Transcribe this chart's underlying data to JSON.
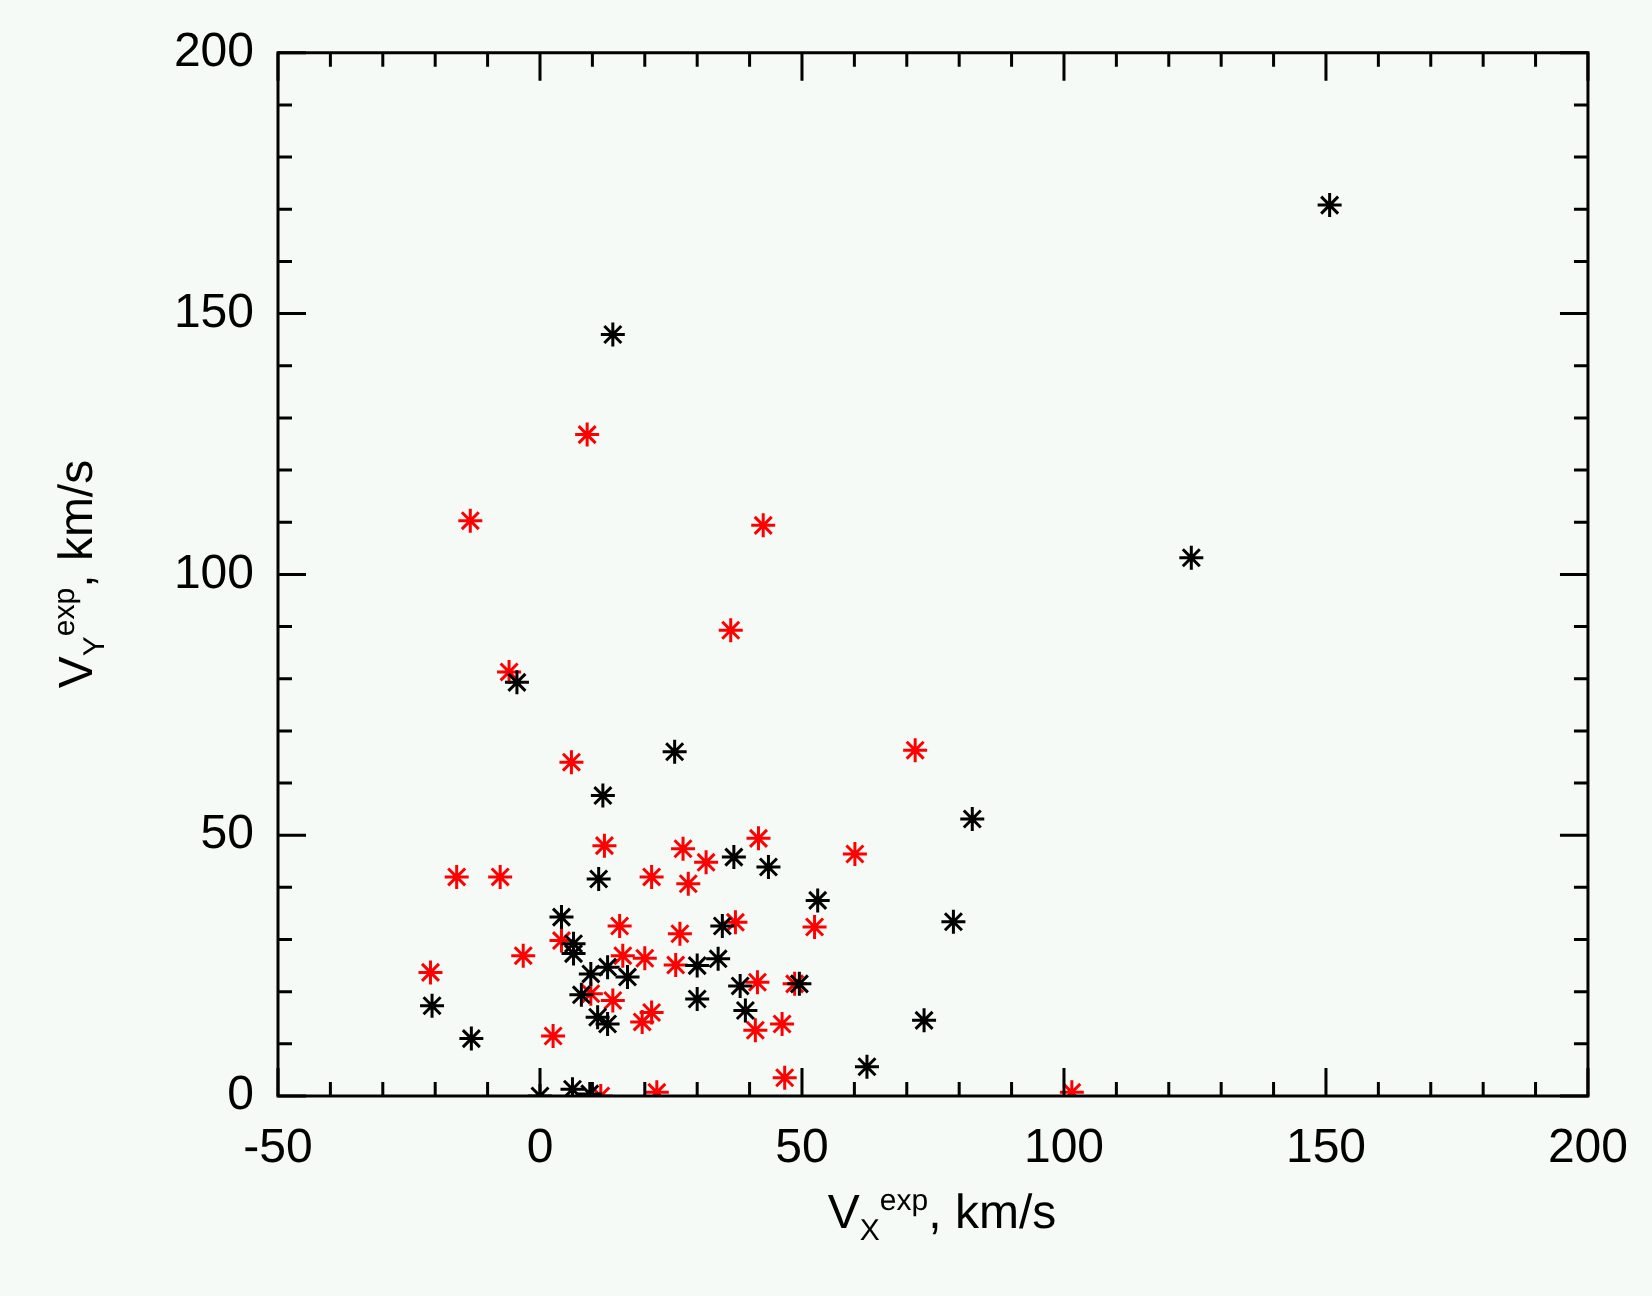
{
  "chart_data": {
    "type": "scatter",
    "xlabel": "V$_{X}$$^{exp}$, km/s",
    "ylabel": "V$_{Y}$$^{exp}$, km/s",
    "marker": "cross",
    "grid": false,
    "legend": false,
    "xlim": [
      -50,
      200
    ],
    "ylim": [
      0,
      200
    ],
    "xticks": [
      -50,
      {
        "value": -40,
        "label": null
      },
      {
        "value": -30,
        "label": null
      },
      {
        "value": -20,
        "label": null
      },
      {
        "value": -10,
        "label": null
      },
      0,
      {
        "value": 10,
        "label": null
      },
      {
        "value": 20,
        "label": null
      },
      {
        "value": 30,
        "label": null
      },
      {
        "value": 40,
        "label": null
      },
      50,
      {
        "value": 60,
        "label": null
      },
      {
        "value": 70,
        "label": null
      },
      {
        "value": 80,
        "label": null
      },
      {
        "value": 90,
        "label": null
      },
      100,
      {
        "value": 110,
        "label": null
      },
      {
        "value": 120,
        "label": null
      },
      {
        "value": 130,
        "label": null
      },
      {
        "value": 140,
        "label": null
      },
      150,
      {
        "value": 160,
        "label": null
      },
      {
        "value": 170,
        "label": null
      },
      {
        "value": 180,
        "label": null
      },
      {
        "value": 190,
        "label": null
      },
      200
    ],
    "yticks": [
      0,
      {
        "value": 10,
        "label": null
      },
      {
        "value": 20,
        "label": null
      },
      {
        "value": 30,
        "label": null
      },
      {
        "value": 40,
        "label": null
      },
      50,
      {
        "value": 60,
        "label": null
      },
      {
        "value": 70,
        "label": null
      },
      {
        "value": 80,
        "label": null
      },
      {
        "value": 90,
        "label": null
      },
      100,
      {
        "value": 110,
        "label": null
      },
      {
        "value": 120,
        "label": null
      },
      {
        "value": 130,
        "label": null
      },
      {
        "value": 140,
        "label": null
      },
      150,
      {
        "value": 160,
        "label": null
      },
      {
        "value": 170,
        "label": null
      },
      {
        "value": 180,
        "label": null
      },
      {
        "value": 190,
        "label": null
      },
      200
    ],
    "series": [
      {
        "color": "#000000",
        "x": [
          -4.4,
          25.7,
          12,
          11.2,
          37,
          43.6,
          4.1,
          6.4,
          6.4,
          9.7,
          12.9,
          16.7,
          30,
          34,
          34.8,
          38.2,
          39.2,
          7.9,
          30,
          11,
          12.9,
          -20.6,
          -13.1,
          6.2,
          9.5,
          0,
          53,
          49.5,
          82.5,
          78.9,
          73.3,
          62.4,
          13.9,
          150.7,
          124.3
        ],
        "values": [
          79.3,
          66,
          57.6,
          41.6,
          45.8,
          43.9,
          34.3,
          29.2,
          27.3,
          23.4,
          24.7,
          22.8,
          25,
          26.3,
          32.6,
          21.1,
          16.4,
          19.4,
          18.6,
          15.1,
          13.8,
          17.3,
          11,
          1.3,
          0.4,
          0,
          37.5,
          21.5,
          53.1,
          33.4,
          14.5,
          5.6,
          146,
          170.8,
          103.2
        ]
      },
      {
        "color": "#ff0000",
        "x": [
          36.4,
          -5.9,
          6,
          12.3,
          27.3,
          31.7,
          41.7,
          -15.9,
          -7.6,
          21.3,
          28.3,
          -20.9,
          -3.2,
          4.1,
          15.2,
          26.7,
          37.3,
          15.8,
          20,
          25.9,
          9.7,
          13.9,
          19.5,
          21.3,
          41.5,
          2.5,
          41.1,
          46.2,
          46.7,
          22.3,
          11.6,
          101.5,
          71.6,
          60.1,
          52.4,
          48.6,
          -13.3,
          9,
          42.6
        ],
        "values": [
          89.3,
          81.3,
          64,
          48,
          47.4,
          44.8,
          49.4,
          42,
          42,
          42,
          40.7,
          23.7,
          26.9,
          29.8,
          32.6,
          31.1,
          33.3,
          26.9,
          26.4,
          25.1,
          19.6,
          18.3,
          14.2,
          16,
          21.8,
          11.5,
          12.6,
          13.8,
          3.5,
          0.7,
          0,
          0.7,
          66.3,
          46.4,
          32.4,
          21.5,
          110.3,
          126.8,
          109.4
        ]
      }
    ]
  }
}
